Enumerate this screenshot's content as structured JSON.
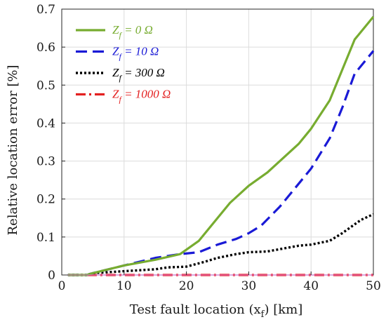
{
  "chart_data": {
    "type": "line",
    "xlabel": "Test fault location (x",
    "xlabel_sub": "f",
    "xlabel_suffix": ") [km]",
    "ylabel": "Relative location error [%]",
    "xlim": [
      0,
      50
    ],
    "ylim": [
      0,
      0.7
    ],
    "xticks": [
      "0",
      "10",
      "20",
      "30",
      "40",
      "50"
    ],
    "yticks": [
      "0",
      "0.1",
      "0.2",
      "0.3",
      "0.4",
      "0.5",
      "0.6",
      "0.7"
    ],
    "grid": true,
    "legend_position": "top-left",
    "series": [
      {
        "name": "Z_f = 0 Ω",
        "legend_main": "Z",
        "legend_sub": "f",
        "legend_rest": " = 0 Ω",
        "color": "#77ac30",
        "style": "solid",
        "x": [
          1,
          3,
          4,
          5,
          10,
          15,
          19,
          22,
          25,
          27,
          30,
          33,
          35,
          38,
          40,
          43,
          47,
          50
        ],
        "y": [
          0,
          0,
          0,
          0.005,
          0.025,
          0.04,
          0.055,
          0.09,
          0.15,
          0.19,
          0.235,
          0.27,
          0.3,
          0.345,
          0.385,
          0.46,
          0.62,
          0.68
        ]
      },
      {
        "name": "Z_f = 10 Ω",
        "legend_main": "Z",
        "legend_sub": "f",
        "legend_rest": " = 10 Ω",
        "color": "#1a1ad6",
        "style": "dashed",
        "x": [
          1,
          3,
          4,
          5,
          10,
          15,
          19,
          22,
          25,
          28,
          30,
          32,
          35,
          38,
          40,
          43,
          45,
          47,
          50
        ],
        "y": [
          0,
          0,
          0,
          0.005,
          0.025,
          0.045,
          0.055,
          0.06,
          0.08,
          0.095,
          0.11,
          0.13,
          0.18,
          0.24,
          0.28,
          0.36,
          0.44,
          0.53,
          0.59
        ]
      },
      {
        "name": "Z_f = 300 Ω",
        "legend_main": "Z",
        "legend_sub": "f",
        "legend_rest": " = 300 Ω",
        "color": "#000000",
        "style": "dotted",
        "x": [
          1,
          3,
          4,
          5,
          10,
          15,
          17,
          20,
          23,
          25,
          28,
          30,
          33,
          35,
          38,
          40,
          43,
          45,
          48,
          50
        ],
        "y": [
          0,
          0,
          0,
          0.005,
          0.01,
          0.015,
          0.02,
          0.022,
          0.035,
          0.045,
          0.055,
          0.06,
          0.062,
          0.068,
          0.077,
          0.08,
          0.09,
          0.11,
          0.145,
          0.16
        ]
      },
      {
        "name": "Z_f = 1000 Ω",
        "legend_main": "Z",
        "legend_sub": "f",
        "legend_rest": " = 1000 Ω",
        "color": "#e32020",
        "style": "dashdot",
        "x": [
          1,
          50
        ],
        "y": [
          0,
          0
        ]
      }
    ]
  }
}
